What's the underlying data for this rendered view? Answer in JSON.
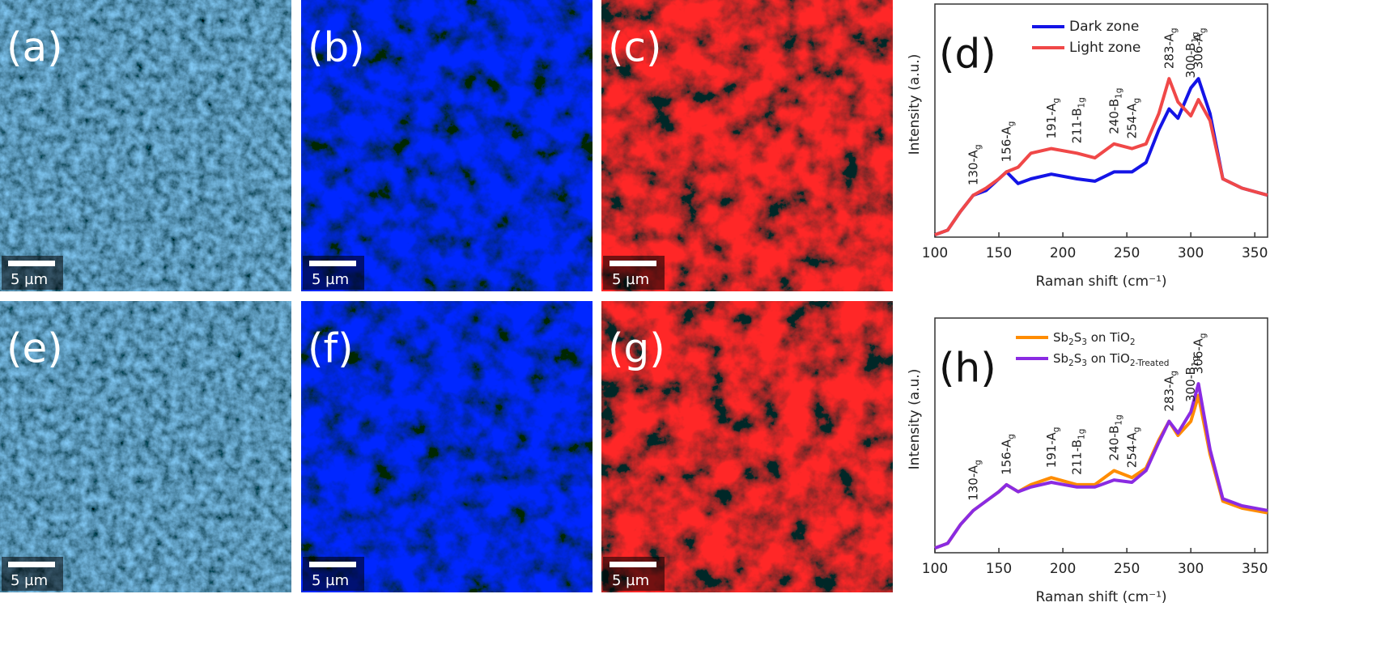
{
  "maps": [
    {
      "label": "(a)",
      "scale_bar": "5 µm",
      "color": "navy"
    },
    {
      "label": "(b)",
      "scale_bar": "5 µm",
      "color": "blue"
    },
    {
      "label": "(c)",
      "scale_bar": "5 µm",
      "color": "red"
    },
    {
      "label": "(e)",
      "scale_bar": "5 µm",
      "color": "navy"
    },
    {
      "label": "(f)",
      "scale_bar": "5 µm",
      "color": "blue"
    },
    {
      "label": "(g)",
      "scale_bar": "5 µm",
      "color": "red"
    }
  ],
  "chart_data": [
    {
      "type": "line",
      "panel_label": "(d)",
      "x_label": "Raman shift (cm⁻¹)",
      "y_label": "Intensity (a.u.)",
      "x": [
        100,
        110,
        120,
        130,
        140,
        150,
        156,
        165,
        175,
        191,
        211,
        225,
        240,
        254,
        265,
        275,
        283,
        290,
        300,
        306,
        315,
        325,
        340,
        360
      ],
      "series": [
        {
          "name": "Dark zone",
          "color": "#1414e6",
          "values": [
            0.01,
            0.03,
            0.11,
            0.18,
            0.2,
            0.25,
            0.28,
            0.23,
            0.25,
            0.27,
            0.25,
            0.24,
            0.28,
            0.28,
            0.32,
            0.46,
            0.55,
            0.51,
            0.64,
            0.68,
            0.53,
            0.25,
            0.21,
            0.18
          ]
        },
        {
          "name": "Light zone",
          "color": "#f04848",
          "values": [
            0.01,
            0.03,
            0.11,
            0.18,
            0.21,
            0.25,
            0.28,
            0.3,
            0.36,
            0.38,
            0.36,
            0.34,
            0.4,
            0.38,
            0.4,
            0.53,
            0.68,
            0.58,
            0.52,
            0.59,
            0.5,
            0.25,
            0.21,
            0.18
          ]
        }
      ],
      "annotations": [
        "130-Ag",
        "156-Ag",
        "191-Ag",
        "211-B1g",
        "240-B1g",
        "254-Ag",
        "283-Ag",
        "300-B1g",
        "306-Ag"
      ],
      "xlim": [
        100,
        360
      ],
      "xticks": [
        100,
        150,
        200,
        250,
        300,
        350
      ],
      "ylim": [
        0,
        1
      ],
      "legend": "top"
    },
    {
      "type": "line",
      "panel_label": "(h)",
      "x_label": "Raman shift (cm⁻¹)",
      "y_label": "Intensity (a.u.)",
      "x": [
        100,
        110,
        120,
        130,
        140,
        150,
        156,
        165,
        175,
        191,
        211,
        225,
        240,
        254,
        265,
        275,
        283,
        290,
        300,
        306,
        315,
        325,
        340,
        360
      ],
      "series": [
        {
          "name": "Sb2S3 on TiO2",
          "color": "#ff8c00",
          "values": [
            0.02,
            0.04,
            0.12,
            0.18,
            0.22,
            0.26,
            0.29,
            0.26,
            0.29,
            0.32,
            0.29,
            0.29,
            0.35,
            0.32,
            0.36,
            0.48,
            0.56,
            0.5,
            0.56,
            0.67,
            0.42,
            0.22,
            0.19,
            0.17
          ]
        },
        {
          "name": "Sb2S3 on TiO2-Treated",
          "color": "#8a2be2",
          "values": [
            0.02,
            0.04,
            0.12,
            0.18,
            0.22,
            0.26,
            0.29,
            0.26,
            0.28,
            0.3,
            0.28,
            0.28,
            0.31,
            0.3,
            0.35,
            0.47,
            0.56,
            0.51,
            0.6,
            0.72,
            0.44,
            0.23,
            0.2,
            0.18
          ]
        }
      ],
      "annotations": [
        "130-Ag",
        "156-Ag",
        "191-Ag",
        "211-B1g",
        "240-B1g",
        "254-Ag",
        "283-Ag",
        "300-B1g",
        "306-Ag"
      ],
      "xlim": [
        100,
        360
      ],
      "xticks": [
        100,
        150,
        200,
        250,
        300,
        350
      ],
      "ylim": [
        0,
        1
      ],
      "legend": "top"
    }
  ]
}
